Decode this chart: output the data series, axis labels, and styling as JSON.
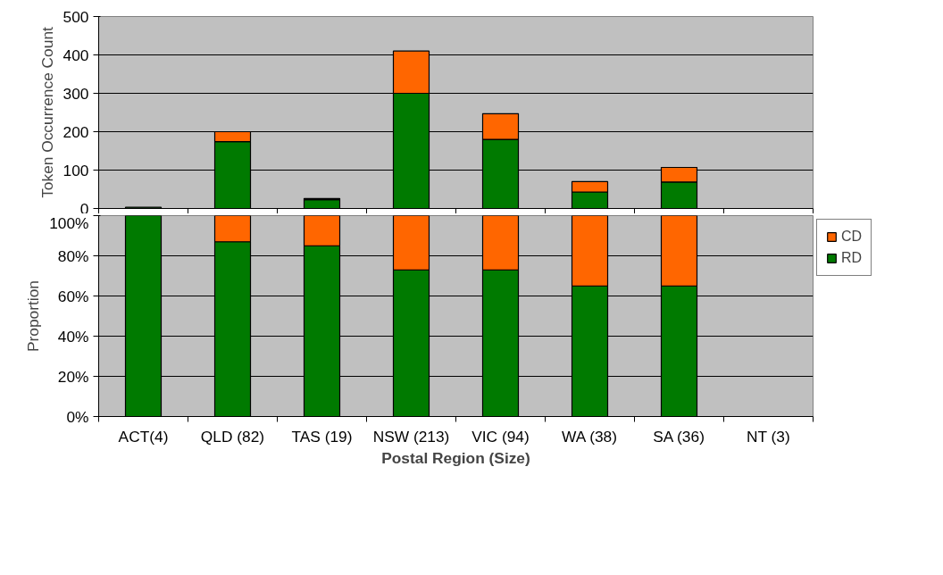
{
  "chart_data": [
    {
      "type": "bar",
      "stacked": true,
      "ylabel": "Token Occurrence Count",
      "categories": [
        null,
        null,
        null,
        null,
        null,
        null,
        null,
        null
      ],
      "series": [
        {
          "color": "#007a00",
          "values": [
            3,
            174,
            23,
            300,
            180,
            43,
            69,
            null
          ]
        },
        {
          "color": "#ff6600",
          "values": [
            null,
            26,
            3,
            110,
            67,
            27,
            38,
            null
          ]
        }
      ],
      "ylim": [
        0,
        500
      ],
      "yticks": [
        0,
        100,
        200,
        300,
        400,
        500
      ],
      "grid": "y",
      "tick_labels": "y"
    },
    {
      "type": "bar",
      "stacked": true,
      "ylabel": "Proportion",
      "xlabel": "Postal Region (Size)",
      "categories": [
        "ACT(4)",
        "QLD (82)",
        "TAS (19)",
        "NSW (213)",
        "VIC (94)",
        "WA (38)",
        "SA (36)",
        "NT (3)"
      ],
      "series": [
        {
          "name": "RD",
          "color": "#007a00",
          "values": [
            100,
            87,
            85,
            73,
            73,
            65,
            65,
            null
          ]
        },
        {
          "name": "CD",
          "color": "#ff6600",
          "values": [
            null,
            13,
            15,
            27,
            27,
            35,
            35,
            null
          ]
        }
      ],
      "ylim": [
        0,
        100
      ],
      "yticks": [
        {
          "value": 0,
          "label": "0%"
        },
        {
          "value": 20,
          "label": "20%"
        },
        {
          "value": 40,
          "label": "40%"
        },
        {
          "value": 60,
          "label": "60%"
        },
        {
          "value": 80,
          "label": "80%"
        },
        {
          "value": 100,
          "label": "100%"
        }
      ],
      "grid": "y",
      "legend": "top right"
    }
  ]
}
